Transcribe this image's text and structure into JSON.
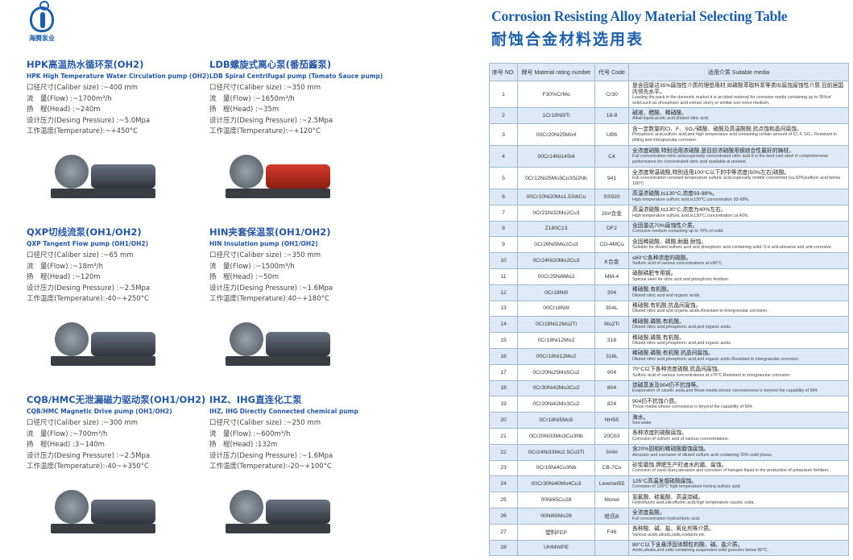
{
  "logo": {
    "text": "海腾泵业"
  },
  "title": {
    "en": "Corrosion Resisting Alloy Material Selecting Table",
    "cn": "耐蚀合金材料选用表"
  },
  "pumps": [
    {
      "cn": "HPK高温热水循环泵(OH2)",
      "en": "HPK High Temperature Water Circulation pump (OH2)",
      "specs": [
        "口径尺寸(Caliber size) :~400 mm",
        "流　量(Flow) :~1700m³/h",
        "扬　程(Head) :~240m",
        "设计压力(Desing Pressure) :~5.0Mpa",
        "工作温度(Temperature):~+450°C"
      ]
    },
    {
      "cn": "LDB螺旋式离心泵(番茄酱泵)",
      "en": "LDB Spiral Centrifugal pump (Tomato Sauce pump)",
      "specs": [
        "口径尺寸(Caliber size) :~350 mm",
        "流　量(Flow) :~1650m³/h",
        "扬　程(Head) :~35m",
        "设计压力(Desing Pressure) :~2.5Mpa",
        "工作温度(Temperature):~+120°C"
      ]
    },
    {
      "cn": "QXP切线流泵(OH1/OH2)",
      "en": "QXP Tangent Flow pump (OH1/OH2)",
      "specs": [
        "口径尺寸(Caliber size) :~65 mm",
        "流　量(Flow) :~18m³/h",
        "扬　程(Head) :~120m",
        "设计压力(Desing Pressure) :~2.5Mpa",
        "工作温度(Temperature):-40~+250°C"
      ]
    },
    {
      "cn": "HIN夹套保温泵(OH1/OH2)",
      "en": "HIN Insulation pump (OH1/OH2)",
      "specs": [
        "口径尺寸(Caliber size) :~350 mm",
        "流　量(Flow) :~1500m³/h",
        "扬　程(Head) :~50m",
        "设计压力(Desing Pressure) :~1.6Mpa",
        "工作温度(Temperature):40~+180°C"
      ]
    },
    {
      "cn": "CQB/HMC无泄漏磁力驱动泵(OH1/OH2)",
      "en": "CQB/HMC Magnetic Drive pump (OH1/OH2)",
      "specs": [
        "口径尺寸(Caliber size) :~300 mm",
        "流　量(Flow) :~700m³/h",
        "扬　程(Head) :3~140m",
        "设计压力(Desing Pressure) :~2.5Mpa",
        "工作温度(Temperature):-40~+350°C"
      ]
    },
    {
      "cn": "IHZ、IHG直连化工泵",
      "en": "IHZ, IHG Directly Connected chemical pump",
      "specs": [
        "口径尺寸(Caliber size) :~250 mm",
        "流　量(Flow) :~600m³/h",
        "扬　程(Head) :132m",
        "设计压力(Desing Pressure) :~1.6Mpa",
        "工作温度(Temperature):-20~+100°C"
      ]
    }
  ],
  "table": {
    "headers": [
      "序号 NO.",
      "牌号 Material rating number",
      "代号 Code",
      "适用介质 Suitable media"
    ],
    "rows": [
      {
        "no": "1",
        "mat": "F30%CrMo",
        "code": "Cr30",
        "cn": "是含固量达35%腐蚀性介质的理想用材,如磷酸萃取料浆等类似腐蚀腐蚀性介质,目前居国内领先水平。",
        "en": "Leading the pack in the domestic market,it is an ideal material for corrosive media containing up to 35%of solid,such as phosphoric acid extract slurry or similar corr-osive medium."
      },
      {
        "no": "2",
        "mat": "1Cr18Ni9Ti",
        "code": "18-8",
        "cn": "碱液、醋酸、稀硝酸。",
        "en": "Alkali liquid,acetic acid,diluted nitric acid."
      },
      {
        "no": "3",
        "mat": "00Cr20Ni25Mo4",
        "code": "UB6",
        "cn": "含一定数量的Cl、F、SO₄²磷酸、硫酸及高温酸酸,抗点蚀和晶间腐蚀。",
        "en": "Phosphoric acid,sulfuric acid,and high temperature acid containing certain amount of Cl, F, SO₄. Resistant to pitting and intergranular corrosion."
      },
      {
        "no": "4",
        "mat": "00Cr14Ni14Si4",
        "code": "C4",
        "cn": "全浓度硝酸,特别适用浓硝酸,是目前浓硝酸用钢综合性最好的铸材。",
        "en": "Full concentration nitric acid,especially concentrated nitric acid.It is the best cast steel in comprehensive performance for concentrated nitric acid available at present."
      },
      {
        "no": "5",
        "mat": "0Cr12Ni25Mo3Cu3Si2Nb",
        "code": "941",
        "cn": "全浓度常温硫酸,特别适用100°C以下的中等浓度(50%左右)硫酸。",
        "en": "Full concentration constant temperature sulfuric acid,especially middle concentred (ca.50%)sulfuric acid below 100°C"
      },
      {
        "no": "6",
        "mat": "00Cr10Ni20Mo1.5Si6Cu",
        "code": "SS920",
        "cn": "高温浓硫酸,t≤130°C,浓度93-98%。",
        "en": "High temperature sulfuric acid,t≤130°C,concentration 93-98%."
      },
      {
        "no": "7",
        "mat": "0Cr21Ni32Mo2Cu3",
        "code": "20#合金",
        "cn": "高温浓硫酸,t≤130°C,浓度为40%左右。",
        "en": "High temperature sulfuric acid,t≤130°C,concentration ca.40%."
      },
      {
        "no": "8",
        "mat": "Z180C13",
        "code": "DF2",
        "cn": "含固量达70%腐蚀性介质。",
        "en": "Corrosive medium containing up to 70% of solid."
      },
      {
        "no": "9",
        "mat": "0Cr26Ni5Mo2Cu3",
        "code": "CD-4MCu",
        "cn": "含固稀硫酸、磷酸,耐磨,耐蚀。",
        "en": "Suitable for diluted sulfuric acid and phosphoric acid containing solid. It is anti-abrasive and anti-corrosive."
      },
      {
        "no": "10",
        "mat": "0Cr24Ni20Mo2Cu3",
        "code": "K合金",
        "cn": "≤60°C各种浓度的硫酸。",
        "en": "Sulfuric acid of various concentrations at ≤60°C."
      },
      {
        "no": "11",
        "mat": "00Cr25Ni6Mo2",
        "code": "MM-4",
        "cn": "硝酸磷肥专用钢。",
        "en": "Special steel for nitric acid and phosphoric fertilizer."
      },
      {
        "no": "12",
        "mat": "0Cr18Ni9",
        "code": "304",
        "cn": "稀硝酸,有机酸。",
        "en": "Diluted nitric acid and organic acids."
      },
      {
        "no": "13",
        "mat": "00Cr18Ni9",
        "code": "304L",
        "cn": "稀硝酸,有机酸,抗晶间腐蚀。",
        "en": "Diluted nitric acid and organic acids.Resistant to intergranular corrosion."
      },
      {
        "no": "14",
        "mat": "0Cr18Ni12Mo2Ti",
        "code": "Mo2Ti",
        "cn": "稀硝酸,磷酸,有机酸。",
        "en": "Diluted nitric acid,phosphoric acid,and organic acids."
      },
      {
        "no": "15",
        "mat": "0Cr18Ni12Mo2",
        "code": "316",
        "cn": "稀硝酸,磷酸,有机酸。",
        "en": "Diluted nitric acid,phosphoric acid,and organic acids."
      },
      {
        "no": "16",
        "mat": "00Cr18Ni12Mo2",
        "code": "316L",
        "cn": "稀硝酸,磷酸,有机酸,抗晶间腐蚀。",
        "en": "Diluted nitric acid,phosphoric acid,and organic acids.Resistant to intergranular corrosion."
      },
      {
        "no": "17",
        "mat": "0Cr20Ni25Mo5Cu2",
        "code": "904",
        "cn": "70°C以下各种浓度硫酸,抗晶间腐蚀。",
        "en": "Sulfuric acid of various concentrations at ≤70°C.Resistant to intergranular corrosion."
      },
      {
        "no": "18",
        "mat": "0Cr30Ni42Mo3Cu2",
        "code": "804",
        "cn": "烧碱蒸发及904仍不抗蚀等。",
        "en": "Evaporation of caustic soda,and those media whose corrosiveness is beyond the capability of 904."
      },
      {
        "no": "19",
        "mat": "0Cr20Ni42Mo3Cu2",
        "code": "824",
        "cn": "904仍不抗蚀介质。",
        "en": "Those media whose corrosivess is beyond the capability of 904."
      },
      {
        "no": "20",
        "mat": "0Cr18Ni5Mo5",
        "code": "NH55",
        "cn": "海水。",
        "en": "Sea water"
      },
      {
        "no": "21",
        "mat": "0Cr20Ni33Mo3Cu3Nb",
        "code": "20Cb3",
        "cn": "各种浓度的硫酸腐蚀。",
        "en": "Corrosion of sulfuric acid of various concentrations."
      },
      {
        "no": "22",
        "mat": "0Cr24Ni33Mo2.5Cu3Ti",
        "code": "3#4#",
        "cn": "含20%固相的稀硫酸磨蚀腐蚀。",
        "en": "Abrasion and corrosion of diluted sulfuric acid containing 20% solid phase."
      },
      {
        "no": "23",
        "mat": "0Cr16Ni4Cu3Nb",
        "code": "CB-7Cu",
        "cn": "砂浆磨蚀,钾肥生产时卤水的磨、腐蚀。",
        "en": "Corrosion of sand slurry,abrasion and corrosion of halogen liquid in the production of potassium fertilizer."
      },
      {
        "no": "24",
        "mat": "00Cr30Ni40Mo4Cu3",
        "code": "Lewmet55",
        "cn": "125°C高温发烟硫酸腐蚀。",
        "en": "Corrosion of 125°C high temperature fuming sulfuric acid."
      },
      {
        "no": "25",
        "mat": "00Ni65Cu28",
        "code": "Monel",
        "cn": "氢氟酸、硅氟酸、高温烧碱。",
        "en": "Hydrofluoric acid,silicofluoric acid,high temperature caustic soda."
      },
      {
        "no": "26",
        "mat": "00Ni65Mo28",
        "code": "哈氏B",
        "cn": "全浓度盐酸。",
        "en": "Full concentration hydrochloric acid."
      },
      {
        "no": "27",
        "mat": "塑料FEP",
        "code": "F46",
        "cn": "各种酸、碱、盐、氧化剂等介质。",
        "en": "Various acids,alkalis,salts,oxidants,etc."
      },
      {
        "no": "28",
        "mat": "UHMWPE",
        "code": "",
        "cn": "80°C以下含悬浮固体颗粒的酸、碱、盐介质。",
        "en": "Acids,alkalis,and salts containing suspended solid granules below 80°C."
      }
    ]
  },
  "colors": {
    "brand": "#1d5fa8",
    "row_alt": "#dde9f5",
    "header_bg": "#dce8f4"
  }
}
